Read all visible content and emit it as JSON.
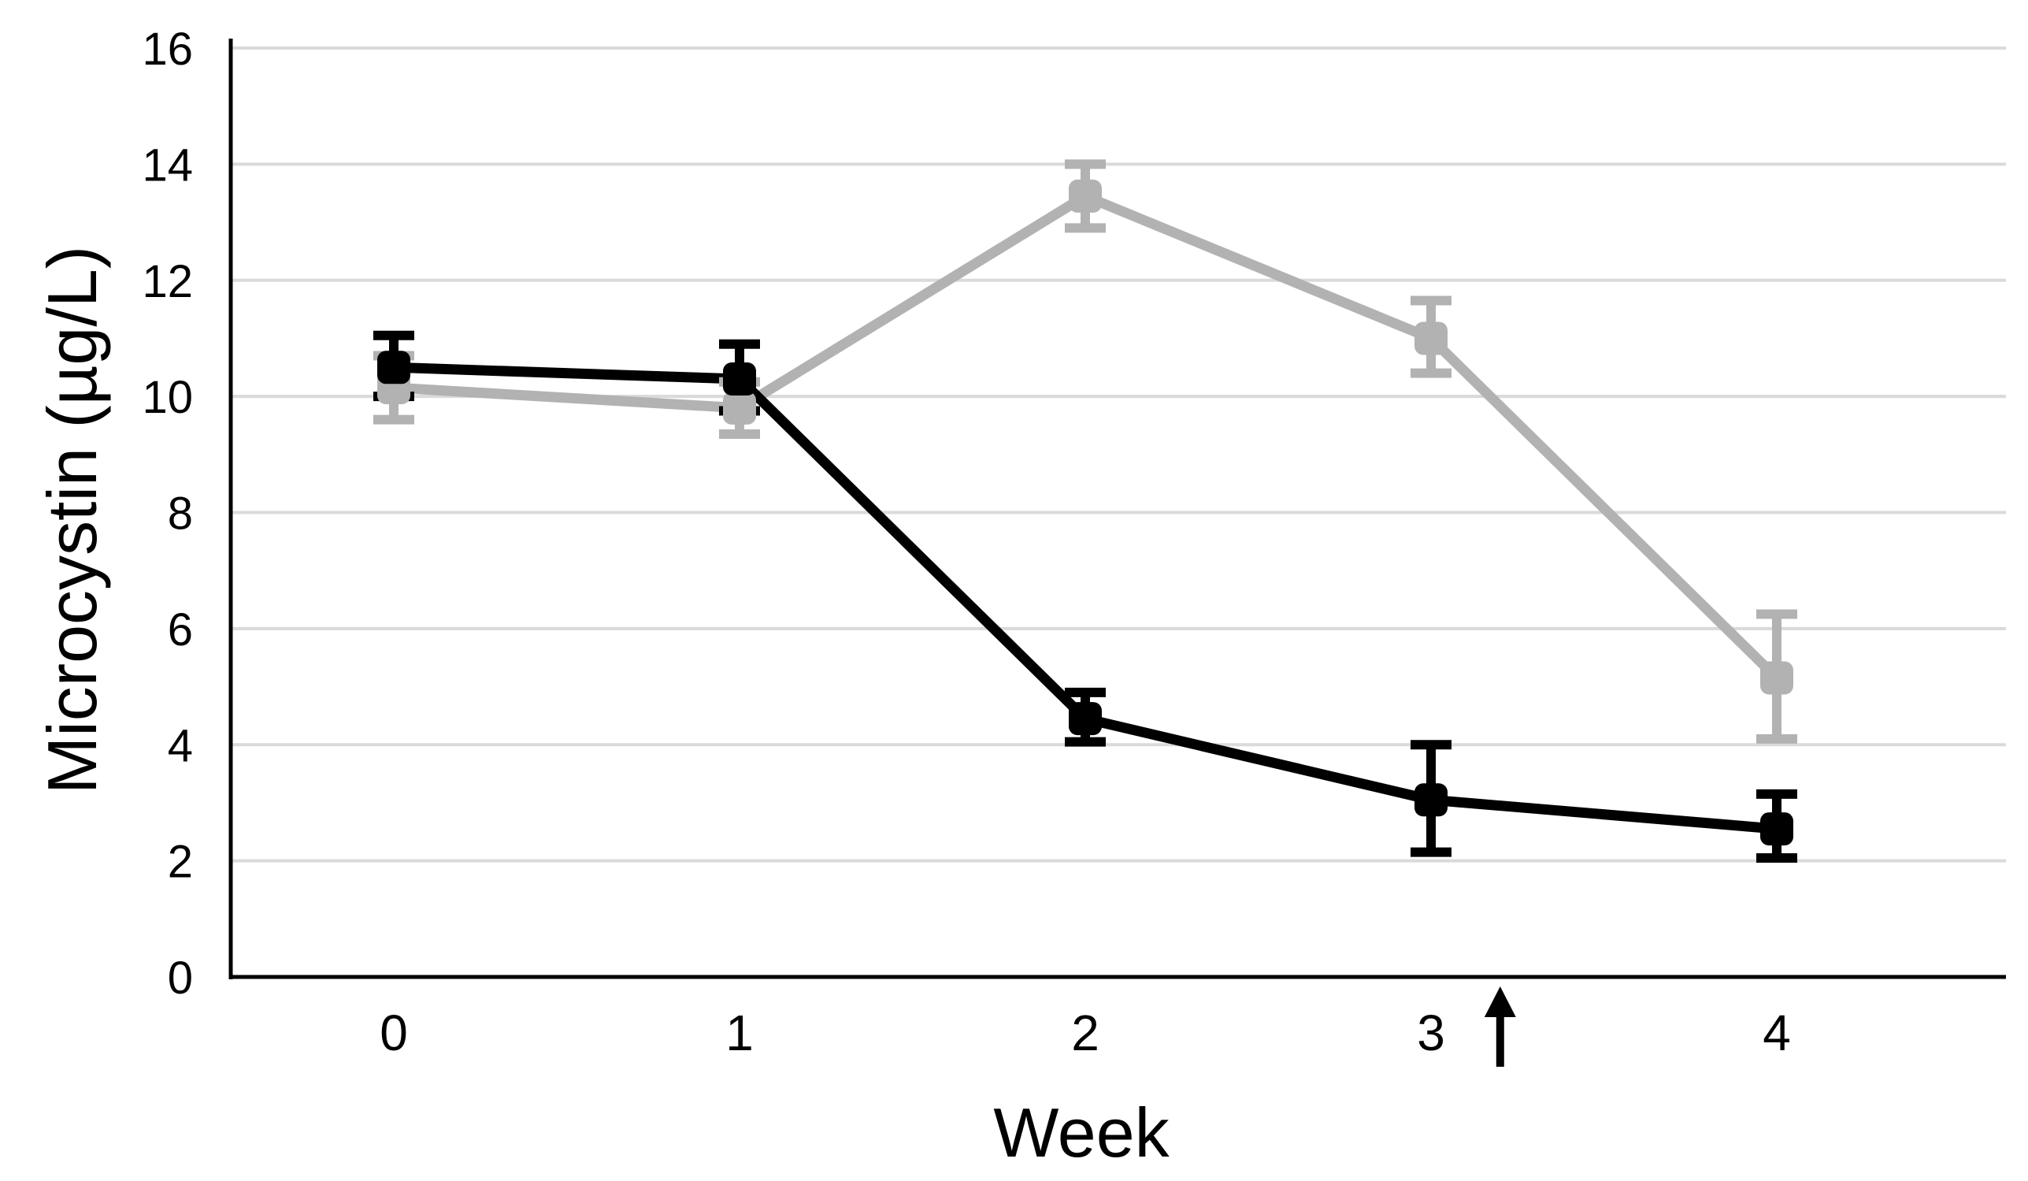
{
  "chart_data": {
    "type": "line",
    "title": "",
    "xlabel": "Week",
    "ylabel": "Microcystin (µg/L)",
    "x_tick_labels": [
      "0",
      "1",
      "2",
      "3",
      "4"
    ],
    "y_ticks": [
      0,
      2,
      4,
      6,
      8,
      10,
      12,
      14,
      16
    ],
    "ylim": [
      0,
      16
    ],
    "x_values_weeks": [
      0,
      1,
      2,
      3,
      4
    ],
    "grid": "horizontal gridlines every 2 units, light gray",
    "legend": "none",
    "colors": {
      "series_black": "#000000",
      "series_gray": "#b2b2b2",
      "gridline": "#dadada",
      "axis": "#000000",
      "text": "#000000",
      "background": "#ffffff"
    },
    "series": [
      {
        "name": "black series",
        "key": "black",
        "color": "#000000",
        "marker": "rounded-square",
        "error_bars": true,
        "values": [
          10.5,
          10.3,
          4.45,
          3.05,
          2.55
        ],
        "error_up": [
          0.55,
          0.6,
          0.45,
          0.95,
          0.6
        ],
        "error_down": [
          0.5,
          0.55,
          0.4,
          0.9,
          0.5
        ]
      },
      {
        "name": "gray series",
        "key": "gray",
        "color": "#b2b2b2",
        "marker": "rounded-square",
        "error_bars": true,
        "values": [
          10.15,
          9.8,
          13.45,
          11.0,
          5.15
        ],
        "error_up": [
          0.55,
          0.45,
          0.55,
          0.65,
          1.1
        ],
        "error_down": [
          0.55,
          0.45,
          0.55,
          0.6,
          1.05
        ]
      }
    ],
    "annotation": {
      "type": "up-arrow",
      "description": "black arrow below the x-axis pointing up at the axis, just right of the week 3 label",
      "x_week": 3.2
    }
  }
}
